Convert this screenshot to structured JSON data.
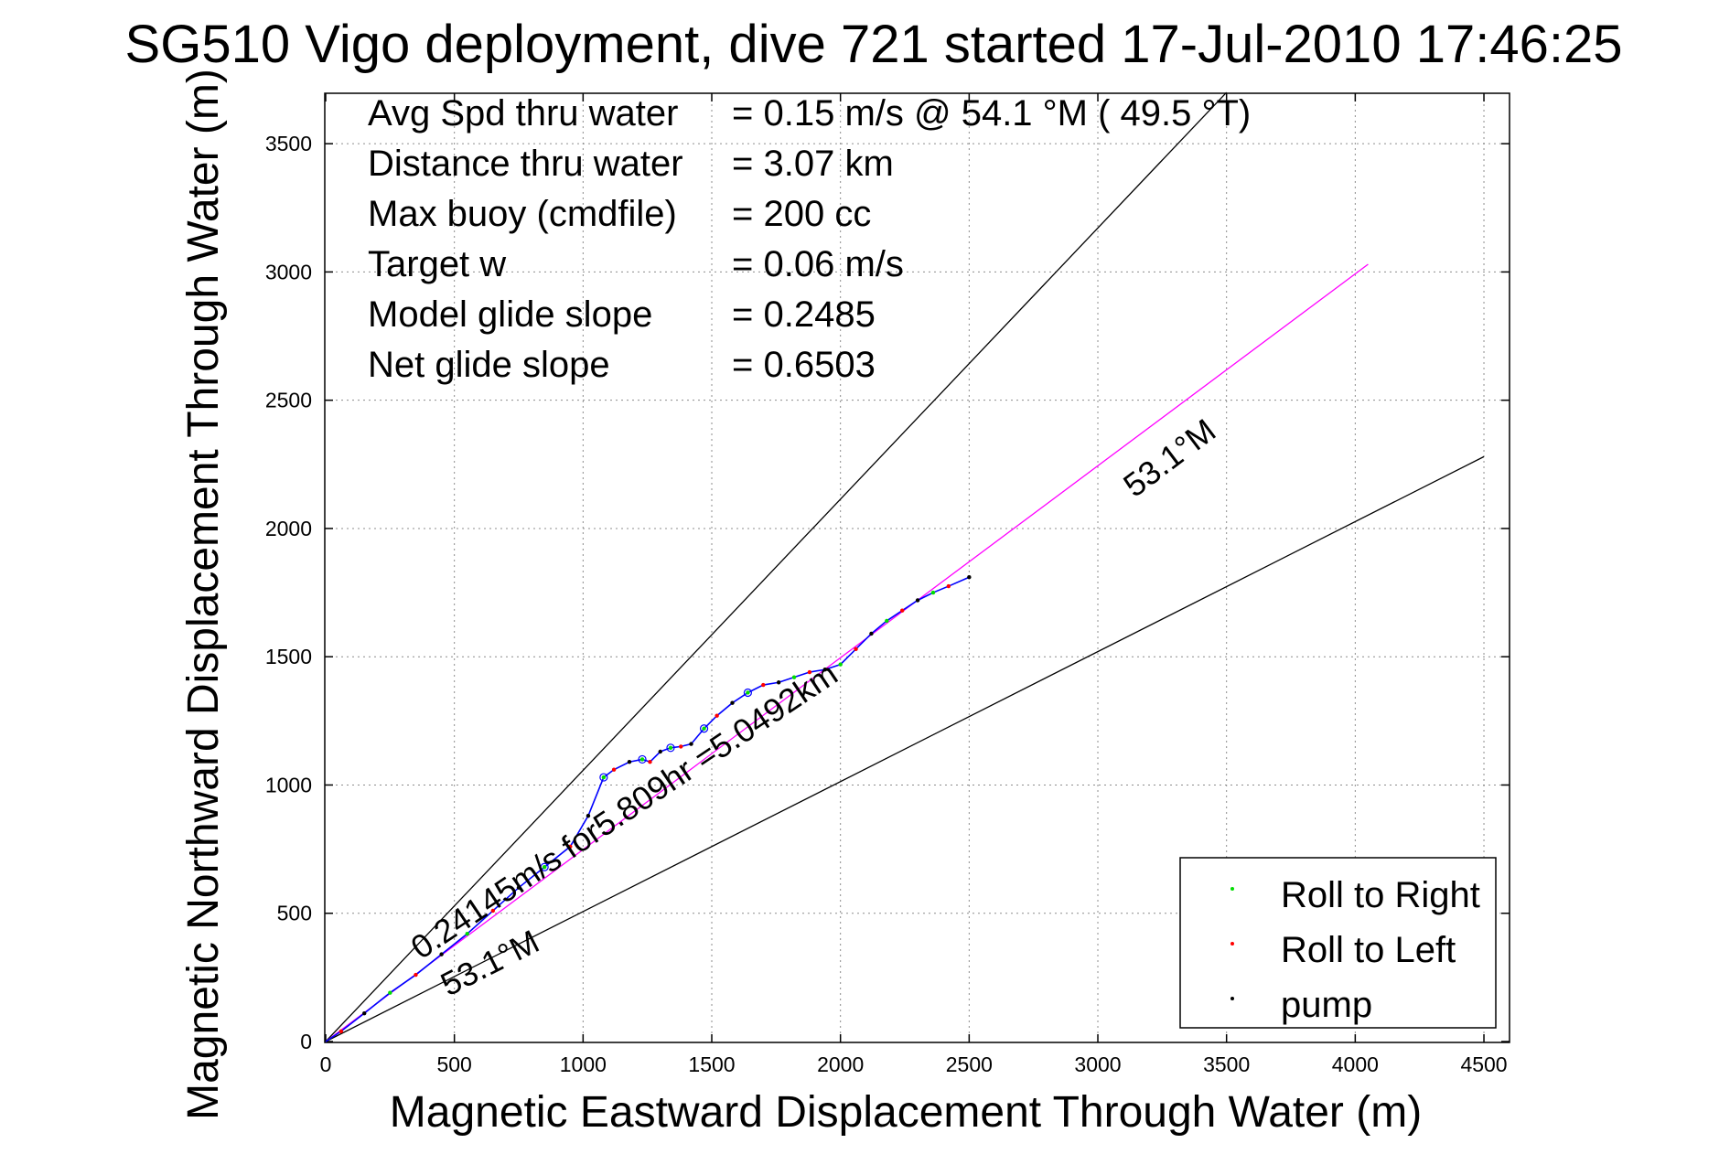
{
  "chart_data": {
    "type": "line",
    "title": "SG510 Vigo deployment, dive 721 started 17-Jul-2010 17:46:25",
    "xlabel": "Magnetic Eastward Displacement Through Water (m)",
    "ylabel": "Magnetic Northward Displacement Through Water (m)",
    "xlim": [
      0,
      4600
    ],
    "ylim": [
      0,
      3700
    ],
    "xticks": [
      0,
      500,
      1000,
      1500,
      2000,
      2500,
      3000,
      3500,
      4000,
      4500
    ],
    "yticks": [
      0,
      500,
      1000,
      1500,
      2000,
      2500,
      3000,
      3500
    ],
    "grid": true,
    "legend_position": "bottom-right",
    "stats": [
      {
        "label": "Avg Spd thru water",
        "value": "=  0.15 m/s @  54.1 °M ( 49.5 °T)"
      },
      {
        "label": "Distance thru water",
        "value": "=  3.07 km"
      },
      {
        "label": "Max buoy (cmdfile)",
        "value": "= 200 cc"
      },
      {
        "label": "Target w",
        "value": "= 0.06 m/s"
      },
      {
        "label": "Model glide slope",
        "value": "= 0.2485"
      },
      {
        "label": "Net glide slope",
        "value": "= 0.6503"
      }
    ],
    "annotations": {
      "track_label": "0.24145m/s for5.809hr =5.0492km",
      "heading_upper": "53.1°M",
      "heading_lower": "53.1°M"
    },
    "reference_lines": [
      {
        "x": [
          0,
          3500
        ],
        "y": [
          0,
          3700
        ],
        "color": "#000000"
      },
      {
        "x": [
          0,
          4500
        ],
        "y": [
          0,
          2280
        ],
        "color": "#000000"
      },
      {
        "x": [
          0,
          4050
        ],
        "y": [
          0,
          3030
        ],
        "color": "#ff00ff"
      }
    ],
    "track": {
      "x": [
        0,
        60,
        150,
        250,
        350,
        450,
        550,
        650,
        750,
        850,
        950,
        1020,
        1080,
        1120,
        1180,
        1230,
        1260,
        1300,
        1340,
        1380,
        1420,
        1470,
        1520,
        1580,
        1640,
        1700,
        1760,
        1820,
        1880,
        1940,
        2000,
        2060,
        2120,
        2180,
        2240,
        2300,
        2360,
        2420,
        2500
      ],
      "y": [
        0,
        40,
        110,
        190,
        260,
        340,
        420,
        510,
        600,
        680,
        760,
        880,
        1030,
        1060,
        1090,
        1100,
        1090,
        1130,
        1145,
        1150,
        1160,
        1220,
        1270,
        1320,
        1360,
        1390,
        1400,
        1420,
        1440,
        1450,
        1470,
        1530,
        1590,
        1640,
        1680,
        1720,
        1750,
        1775,
        1810
      ],
      "color": "#0000ff"
    },
    "series": [
      {
        "name": "Roll to Right",
        "color": "#00dd00",
        "marker": "dot"
      },
      {
        "name": "Roll to Left",
        "color": "#ff0000",
        "marker": "dot"
      },
      {
        "name": "pump",
        "color": "#000000",
        "marker": "dot"
      }
    ]
  }
}
